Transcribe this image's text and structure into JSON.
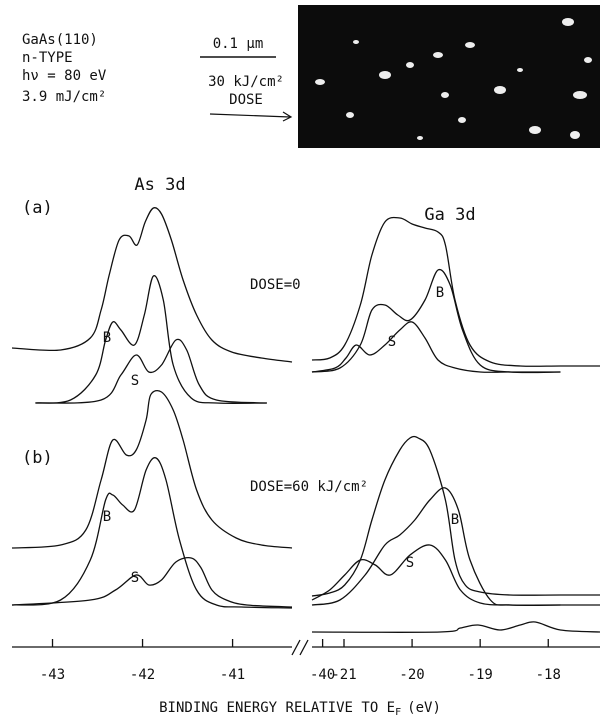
{
  "figure": {
    "sample": [
      "GaAs(110)",
      "n-TYPE",
      "hν = 80 eV",
      "3.9 mJ/cm²"
    ],
    "scale_bar": "0.1 μm",
    "dose_note": [
      "30 kJ/cm²",
      "DOSE"
    ],
    "panels": [
      "(a)",
      "(b)"
    ],
    "doses": [
      "DOSE=0",
      "DOSE=60 kJ/cm²"
    ],
    "xlabel": {
      "text": "BINDING ENERGY RELATIVE TO E",
      "subscript": "F",
      "unit": "(eV)"
    }
  },
  "chart_data": [
    {
      "type": "line",
      "title": "As 3d",
      "color": "#111111",
      "xlim": [
        -43.45,
        -40.34
      ],
      "xticks": [
        -43,
        -42,
        -41,
        -40
      ],
      "ylim": [
        0,
        460
      ],
      "series": [
        {
          "x": [
            -43.45,
            -42.91,
            -42.58,
            -42.46,
            -42.37,
            -42.26,
            -42.15,
            -42.06,
            -41.97,
            -41.88,
            -41.79,
            -41.68,
            -41.55,
            -41.4,
            -41.23,
            -41.01,
            -40.68,
            -40.34
          ],
          "values": [
            297,
            295,
            307,
            335,
            370,
            405,
            409,
            400,
            423,
            437,
            431,
            405,
            365,
            330,
            305,
            293,
            287,
            283
          ]
        },
        {
          "name": "B",
          "x": [
            -43.19,
            -42.8,
            -42.52,
            -42.41,
            -42.33,
            -42.24,
            -42.09,
            -41.98,
            -41.88,
            -41.77,
            -41.66,
            -41.46,
            -41.18,
            -40.62
          ],
          "values": [
            242,
            245,
            270,
            305,
            323,
            315,
            300,
            330,
            369,
            345,
            280,
            247,
            242,
            242
          ]
        },
        {
          "name": "S",
          "x": [
            -43.19,
            -42.46,
            -42.24,
            -42.07,
            -41.93,
            -41.79,
            -41.63,
            -41.51,
            -41.37,
            -41.18,
            -40.62
          ],
          "values": [
            242,
            245,
            270,
            290,
            273,
            280,
            305,
            295,
            260,
            245,
            242
          ]
        },
        {
          "x": [
            -43.45,
            -42.91,
            -42.63,
            -42.46,
            -42.33,
            -42.18,
            -42.07,
            -41.96,
            -41.91,
            -41.79,
            -41.66,
            -41.55,
            -41.4,
            -41.23,
            -40.96,
            -40.68,
            -40.34
          ],
          "values": [
            97,
            100,
            115,
            165,
            205,
            190,
            195,
            225,
            250,
            253,
            235,
            205,
            155,
            125,
            107,
            100,
            97
          ]
        },
        {
          "name": "B",
          "x": [
            -43.45,
            -42.91,
            -42.58,
            -42.41,
            -42.33,
            -42.22,
            -42.09,
            -41.96,
            -41.85,
            -41.74,
            -41.59,
            -41.4,
            -41.18,
            -40.9,
            -40.34
          ],
          "values": [
            40,
            45,
            85,
            145,
            150,
            140,
            135,
            175,
            187,
            165,
            105,
            55,
            40,
            38,
            37
          ]
        },
        {
          "name": "S",
          "x": [
            -43.45,
            -42.58,
            -42.3,
            -42.07,
            -41.93,
            -41.79,
            -41.63,
            -41.46,
            -41.35,
            -41.23,
            -41.07,
            -40.84,
            -40.34
          ],
          "values": [
            40,
            45,
            55,
            70,
            60,
            65,
            83,
            87,
            77,
            55,
            45,
            40,
            38
          ]
        }
      ]
    },
    {
      "type": "line",
      "title": "Ga 3d",
      "color": "#111111",
      "xlim": [
        -21.47,
        -17.24
      ],
      "xticks": [
        -21,
        -20,
        -19,
        -18
      ],
      "ylim": [
        0,
        460
      ],
      "series": [
        {
          "x": [
            -21.47,
            -21.21,
            -20.99,
            -20.76,
            -20.59,
            -20.4,
            -20.18,
            -20.0,
            -19.81,
            -19.62,
            -19.51,
            -19.37,
            -19.15,
            -18.85,
            -18.41,
            -17.82,
            -17.24
          ],
          "values": [
            285,
            287,
            300,
            340,
            390,
            423,
            427,
            421,
            417,
            413,
            400,
            345,
            300,
            283,
            279,
            279,
            279
          ]
        },
        {
          "name": "B",
          "x": [
            -21.47,
            -21.06,
            -20.76,
            -20.59,
            -20.4,
            -20.21,
            -20.03,
            -19.81,
            -19.62,
            -19.44,
            -19.26,
            -19.0,
            -18.56,
            -17.82
          ],
          "values": [
            273,
            277,
            300,
            335,
            340,
            330,
            325,
            345,
            375,
            360,
            315,
            280,
            273,
            273
          ]
        },
        {
          "name": "S",
          "x": [
            -21.47,
            -21.13,
            -20.97,
            -20.82,
            -20.62,
            -20.4,
            -20.18,
            -20.0,
            -19.81,
            -19.62,
            -19.37,
            -19.0,
            -18.56,
            -17.82
          ],
          "values": [
            273,
            277,
            287,
            300,
            290,
            300,
            315,
            323,
            307,
            285,
            277,
            273,
            273,
            273
          ]
        },
        {
          "x": [
            -21.47,
            -21.21,
            -20.99,
            -20.76,
            -20.59,
            -20.4,
            -20.18,
            -20.03,
            -19.91,
            -19.74,
            -19.51,
            -19.37,
            -19.22,
            -19.0,
            -18.56,
            -17.82,
            -17.24
          ],
          "values": [
            49,
            52,
            60,
            85,
            125,
            165,
            195,
            207,
            207,
            195,
            145,
            85,
            60,
            53,
            50,
            50,
            50
          ]
        },
        {
          "name": "B",
          "x": [
            -21.47,
            -21.06,
            -20.69,
            -20.4,
            -20.18,
            -19.96,
            -19.74,
            -19.51,
            -19.32,
            -19.15,
            -18.85,
            -18.56,
            -17.82,
            -17.24
          ],
          "values": [
            40,
            45,
            70,
            100,
            110,
            125,
            145,
            157,
            135,
            85,
            45,
            40,
            40,
            40
          ]
        },
        {
          "name": "S",
          "x": [
            -21.47,
            -21.21,
            -20.99,
            -20.76,
            -20.54,
            -20.32,
            -20.03,
            -19.74,
            -19.51,
            -19.29,
            -19.0,
            -18.56,
            -17.82
          ],
          "values": [
            45,
            55,
            70,
            85,
            80,
            70,
            90,
            100,
            85,
            55,
            42,
            40,
            40
          ]
        },
        {
          "x": [
            -21.47,
            -19.59,
            -19.29,
            -19.03,
            -18.71,
            -18.41,
            -18.19,
            -17.82,
            -17.24
          ],
          "values": [
            13,
            13,
            17,
            20,
            15,
            20,
            23,
            15,
            13
          ]
        }
      ]
    }
  ]
}
